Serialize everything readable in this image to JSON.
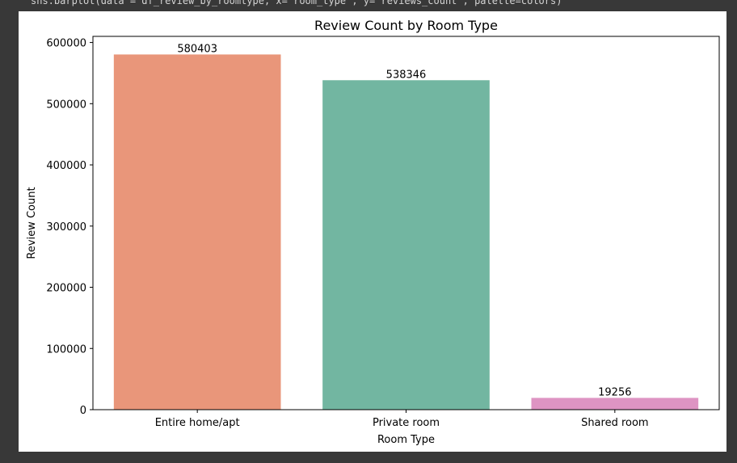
{
  "code_cell": {
    "text": "sns.barplot(data = df_review_by_roomtype, x='room_type', y='reviews_count', palette=colors)"
  },
  "chart_data": {
    "type": "bar",
    "title": "Review Count by Room Type",
    "xlabel": "Room Type",
    "ylabel": "Review Count",
    "categories": [
      "Entire home/apt",
      "Private room",
      "Shared room"
    ],
    "values": [
      580403,
      538346,
      19256
    ],
    "value_labels": [
      "580403",
      "538346",
      "19256"
    ],
    "colors": [
      "#e9967a",
      "#72b6a1",
      "#de94c3"
    ],
    "ylim": [
      0,
      610000
    ],
    "yticks": [
      0,
      100000,
      200000,
      300000,
      400000,
      500000,
      600000
    ],
    "ytick_labels": [
      "0",
      "100000",
      "200000",
      "300000",
      "400000",
      "500000",
      "600000"
    ],
    "grid": false,
    "legend": "none"
  }
}
